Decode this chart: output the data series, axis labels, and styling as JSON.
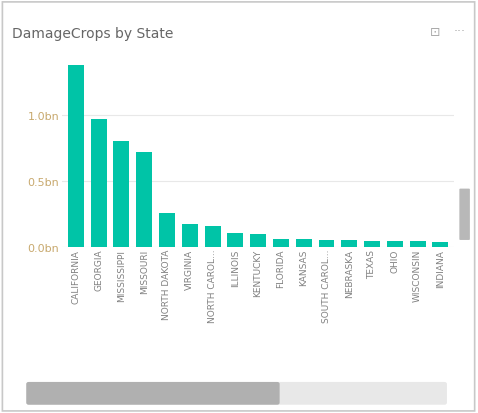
{
  "title": "DamageCrops by State",
  "categories": [
    "CALIFORNIA",
    "GEORGIA",
    "MISSISSIPPI",
    "MISSOURI",
    "NORTH DAKOTA",
    "VIRGINIA",
    "NORTH CAROL...",
    "ILLINOIS",
    "KENTUCKY",
    "FLORIDA",
    "KANSAS",
    "SOUTH CAROL...",
    "NEBRASKA",
    "TEXAS",
    "OHIO",
    "WISCONSIN",
    "INDIANA"
  ],
  "values": [
    1.38,
    0.97,
    0.8,
    0.72,
    0.26,
    0.18,
    0.165,
    0.105,
    0.1,
    0.065,
    0.06,
    0.055,
    0.053,
    0.05,
    0.048,
    0.047,
    0.042
  ],
  "bar_color": "#00c4a7",
  "background_color": "#ffffff",
  "border_color": "#c8c8c8",
  "ytick_labels": [
    "0.0bn",
    "0.5bn",
    "1.0bn"
  ],
  "ytick_values": [
    0,
    0.5,
    1.0
  ],
  "ylabel_color": "#c8a96e",
  "title_color": "#666666",
  "tick_label_color": "#808080",
  "grid_color": "#e8e8e8",
  "ylim": [
    0,
    1.5
  ],
  "scrollbar_color": "#b0b0b0",
  "scrollbar_track_color": "#e8e8e8"
}
